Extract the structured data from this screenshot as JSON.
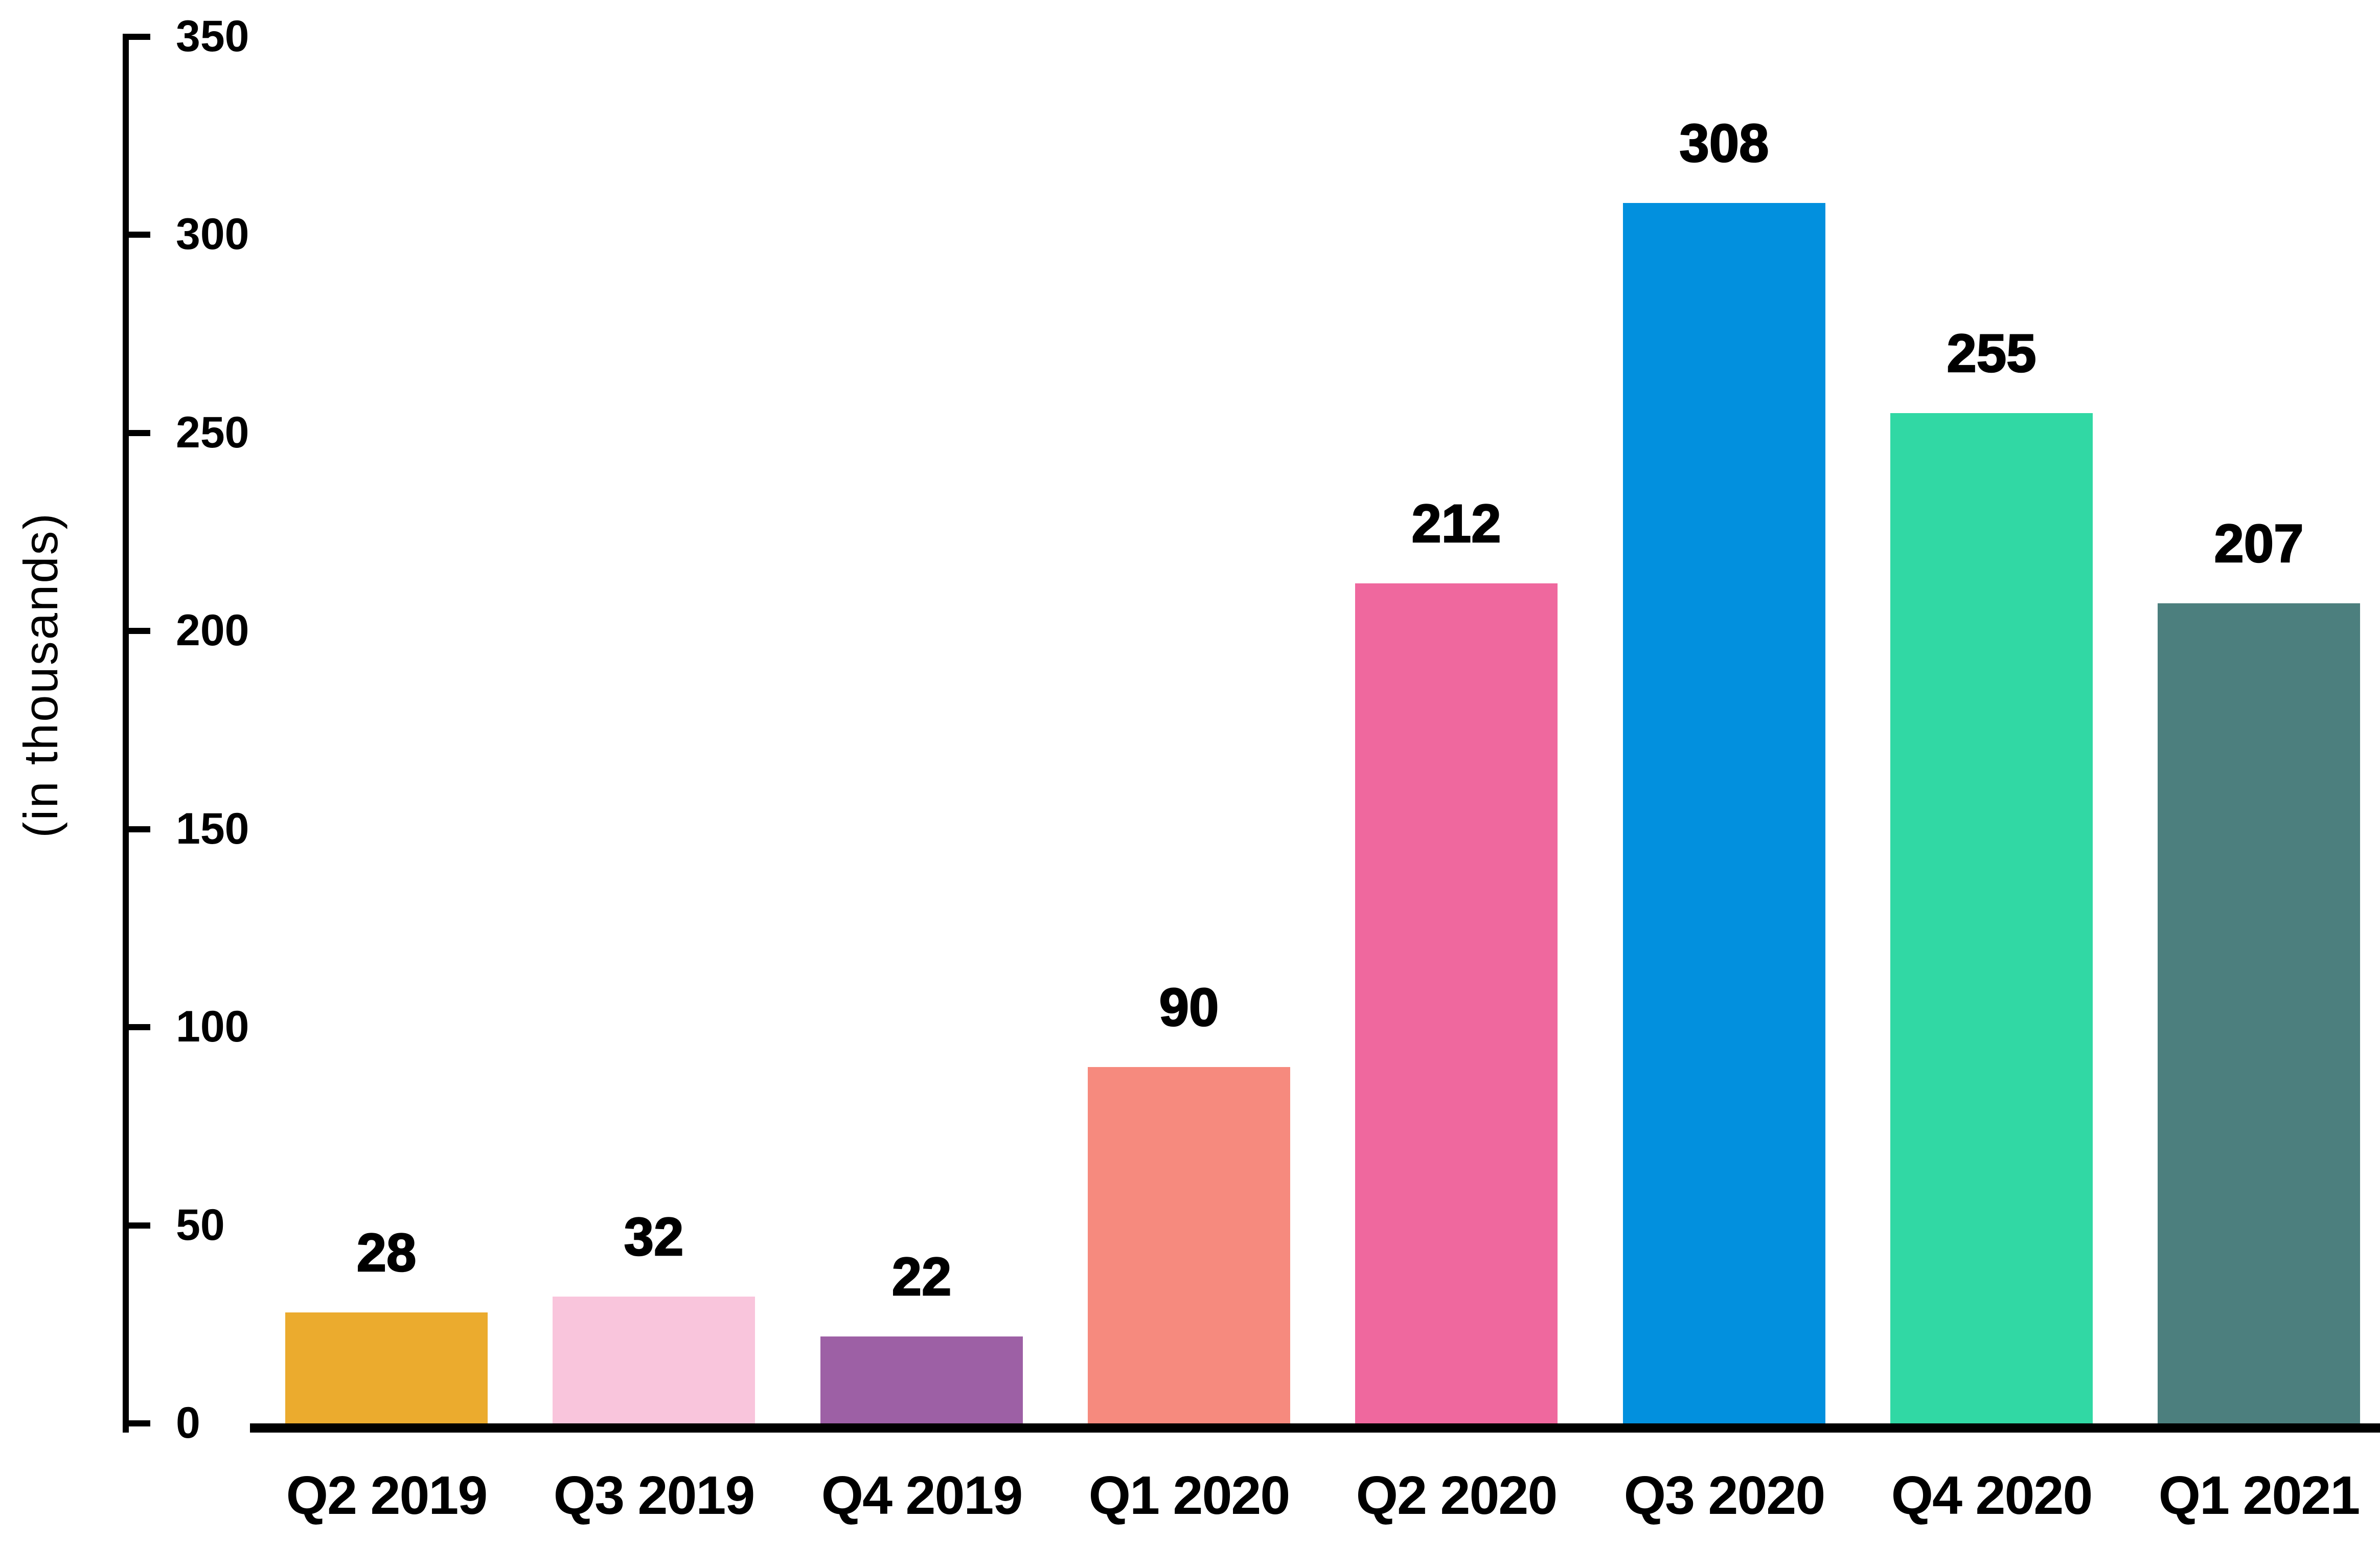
{
  "chart_data": {
    "type": "bar",
    "title": "",
    "ylabel": "(in thousands)",
    "xlabel": "",
    "categories": [
      "Q2 2019",
      "Q3 2019",
      "Q4 2019",
      "Q1 2020",
      "Q2 2020",
      "Q3 2020",
      "Q4 2020",
      "Q1 2021"
    ],
    "values": [
      28,
      32,
      22,
      90,
      212,
      308,
      255,
      207
    ],
    "bar_colors": [
      "#EBAB2E",
      "#F9C5DC",
      "#9D60A5",
      "#F68A7E",
      "#EF689E",
      "#0290DE",
      "#31D8A4",
      "#4C7F7E"
    ],
    "yticks": [
      0,
      50,
      100,
      150,
      200,
      250,
      300,
      350
    ],
    "ylim": [
      0,
      350
    ],
    "grid": false,
    "legend": false,
    "value_labels_shown": true,
    "colors": {
      "axis": "#000000",
      "text": "#000000",
      "background": "#FFFFFF"
    }
  }
}
